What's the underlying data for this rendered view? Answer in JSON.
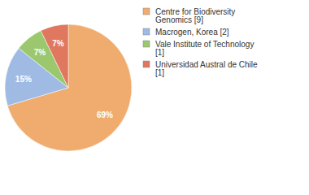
{
  "chart_data": {
    "type": "pie",
    "categories": [
      "Centre for Biodiversity Genomics [9]",
      "Macrogen, Korea [2]",
      "Vale Institute of Technology [1]",
      "Universidad Austral de Chile [1]"
    ],
    "values": [
      69,
      15,
      7,
      7
    ],
    "value_labels": [
      "69%",
      "15%",
      "7%",
      "7%"
    ],
    "colors": [
      "#f0ac6e",
      "#9fbbe4",
      "#9bc86e",
      "#df785f"
    ],
    "data_labels": true,
    "legend": "top-right"
  }
}
